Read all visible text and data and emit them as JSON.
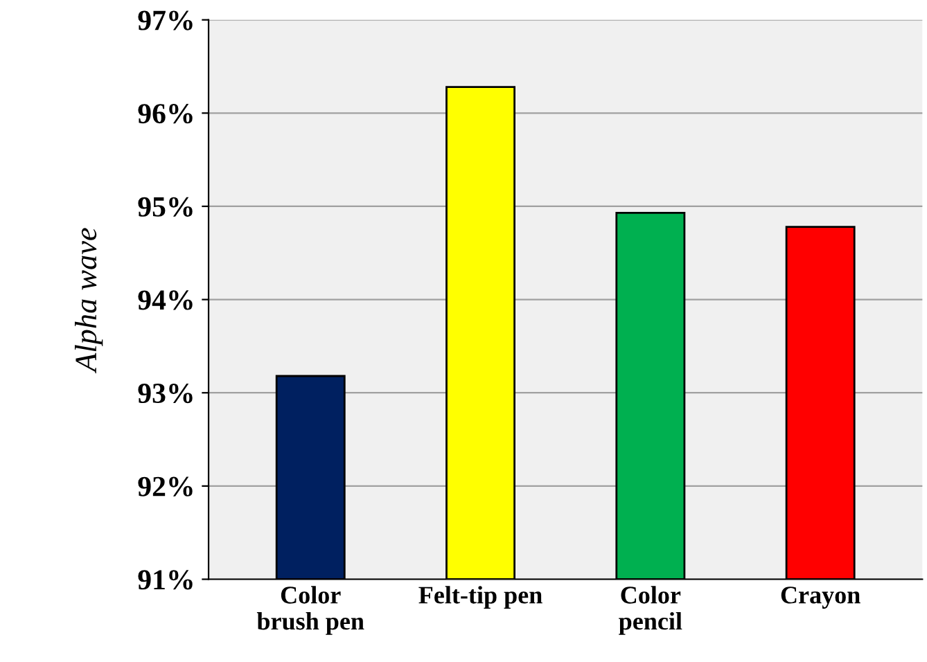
{
  "chart_data": {
    "type": "bar",
    "ylabel": "Alpha wave",
    "categories": [
      "Color\nbrush pen",
      "Felt-tip pen",
      "Color\npencil",
      "Crayon"
    ],
    "values": [
      93.18,
      96.28,
      94.93,
      94.78
    ],
    "colors": [
      "#002060",
      "#ffff00",
      "#00b050",
      "#ff0000"
    ],
    "ylim": [
      91,
      97
    ],
    "yticks": [
      {
        "value": 91,
        "label": "91%"
      },
      {
        "value": 92,
        "label": "92%"
      },
      {
        "value": 93,
        "label": "93%"
      },
      {
        "value": 94,
        "label": "94%"
      },
      {
        "value": 95,
        "label": "95%"
      },
      {
        "value": 96,
        "label": "96%"
      },
      {
        "value": 97,
        "label": "97%"
      }
    ],
    "grid": "y"
  }
}
